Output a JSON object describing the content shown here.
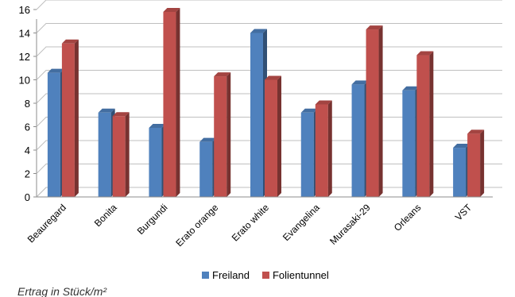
{
  "chart_data": {
    "type": "bar",
    "categories": [
      "Beauregard",
      "Bonita",
      "Burgundi",
      "Erato orange",
      "Erato white",
      "Evangelina",
      "Murasaki-29",
      "Orleans",
      "VST"
    ],
    "series": [
      {
        "name": "Freiland",
        "color": "#4f81bd",
        "values": [
          10.6,
          7.2,
          5.9,
          4.7,
          14.0,
          7.2,
          9.6,
          9.1,
          4.2
        ]
      },
      {
        "name": "Folientunnel",
        "color": "#c0504d",
        "values": [
          13.1,
          6.9,
          15.8,
          10.3,
          10.0,
          7.9,
          14.3,
          12.1,
          5.4
        ]
      }
    ],
    "ylim": [
      0,
      16
    ],
    "yticks": [
      0,
      2,
      4,
      6,
      8,
      10,
      12,
      14,
      16
    ],
    "grid": true,
    "legend": "bottom",
    "caption": "Ertrag in Stück/m²"
  }
}
